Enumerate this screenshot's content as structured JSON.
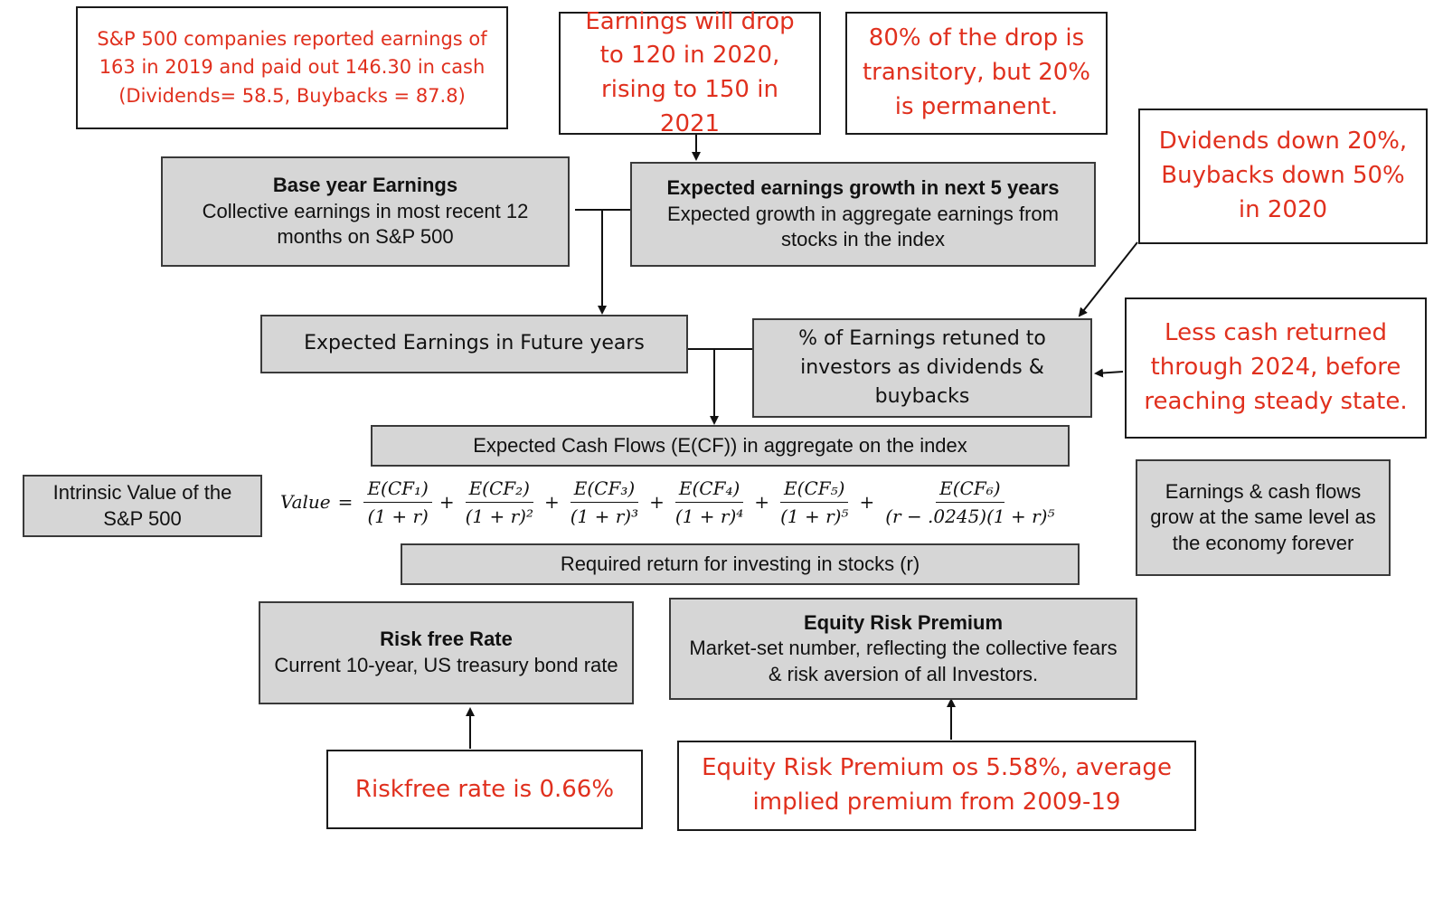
{
  "notes": {
    "sp500_reported": "S&P 500 companies reported earnings of 163 in 2019 and paid out 146.30 in cash (Dividends= 58.5, Buybacks = 87.8)",
    "earnings_drop": "Earnings will drop to 120 in 2020, rising to 150 in 2021",
    "drop_transitory": "80% of the drop is transitory, but 20% is permanent.",
    "dividends_down": "Dvidends down 20%, Buybacks down 50% in 2020",
    "less_cash": "Less cash returned through 2024, before reaching steady state.",
    "riskfree_note": "Riskfree rate is 0.66%",
    "erp_note": "Equity Risk Premium os 5.58%, average implied premium from 2009-19"
  },
  "boxes": {
    "base_year": {
      "title": "Base year Earnings",
      "body": "Collective earnings in most recent 12 months on S&P 500"
    },
    "growth": {
      "title": "Expected earnings growth in next 5 years",
      "body": "Expected growth in aggregate earnings from stocks in the index"
    },
    "future_earnings": "Expected Earnings in Future years",
    "payout": "% of Earnings retuned to investors as dividends & buybacks",
    "cash_flows": "Expected Cash Flows (E(CF)) in aggregate on the index",
    "intrinsic": "Intrinsic Value of the S&P 500",
    "steady": "Earnings & cash flows grow at the same level as the economy forever",
    "required_return": "Required return for investing in stocks (r)",
    "riskfree": {
      "title": "Risk free Rate",
      "body": "Current 10-year, US treasury bond rate"
    },
    "erp": {
      "title": "Equity Risk Premium",
      "body": "Market-set number, reflecting the collective fears & risk aversion of all Investors."
    }
  },
  "equation": {
    "lhs": "Value",
    "eq": "=",
    "plus": "+",
    "terms": [
      {
        "num": "E(CF₁)",
        "den": "(1 + r)"
      },
      {
        "num": "E(CF₂)",
        "den": "(1 + r)²"
      },
      {
        "num": "E(CF₃)",
        "den": "(1 + r)³"
      },
      {
        "num": "E(CF₄)",
        "den": "(1 + r)⁴"
      },
      {
        "num": "E(CF₅)",
        "den": "(1 + r)⁵"
      },
      {
        "num": "E(CF₆)",
        "den": "(r − .0245)(1 + r)⁵"
      }
    ]
  }
}
